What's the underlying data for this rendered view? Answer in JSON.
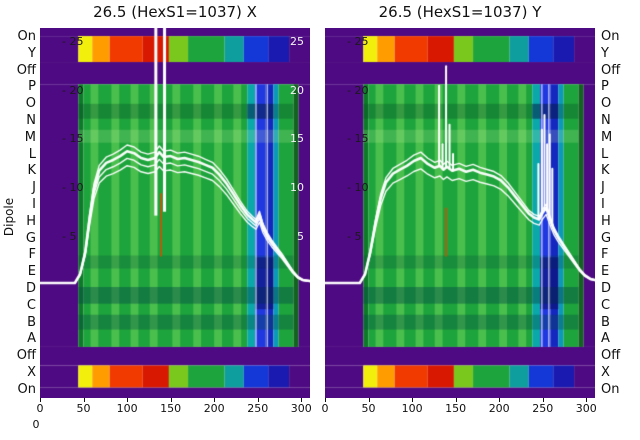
{
  "side_labels": {
    "dipole": "Dipole",
    "rows": [
      "On",
      "Y",
      "Off",
      "P",
      "O",
      "N",
      "M",
      "L",
      "K",
      "J",
      "I",
      "H",
      "G",
      "F",
      "E",
      "D",
      "C",
      "B",
      "A",
      "Off",
      "X",
      "On"
    ]
  },
  "chart_data": {
    "type": "heatmap",
    "x_range": [
      0,
      310
    ],
    "x_ticks": [
      0,
      50,
      100,
      150,
      200,
      250,
      300
    ],
    "y_ticks": [
      25,
      20,
      15,
      10,
      5
    ],
    "origin_extra_label": "0",
    "value_axis": {
      "zero_frac": 0.697,
      "unit_frac": 0.02638
    },
    "colors": {
      "purple": "#4e0a82",
      "green": "#1ea43c",
      "trace": "#ffffff",
      "red_line": "#e04a00",
      "tick_text": "#1a1a1a",
      "white_tick": "#f5f5f5"
    },
    "heat": {
      "rows": [
        {
          "y0": 0.0,
          "y1": 0.022,
          "fill": "purple"
        },
        {
          "y0": 0.022,
          "y1": 0.092,
          "fill": "rainbow"
        },
        {
          "y0": 0.092,
          "y1": 0.152,
          "fill": "purple"
        },
        {
          "y0": 0.152,
          "y1": 0.862,
          "fill": "main"
        },
        {
          "y0": 0.862,
          "y1": 0.912,
          "fill": "purple"
        },
        {
          "y0": 0.912,
          "y1": 0.972,
          "fill": "rainbow"
        },
        {
          "y0": 0.972,
          "y1": 1.0,
          "fill": "purple"
        }
      ],
      "rainbow": [
        {
          "x0": 0,
          "x1": 44,
          "c": "#4e0a82"
        },
        {
          "x0": 44,
          "x1": 60,
          "c": "#f2ef0c"
        },
        {
          "x0": 60,
          "x1": 80,
          "c": "#ff9d00"
        },
        {
          "x0": 80,
          "x1": 118,
          "c": "#f03a00"
        },
        {
          "x0": 118,
          "x1": 148,
          "c": "#d81800"
        },
        {
          "x0": 148,
          "x1": 170,
          "c": "#7ac81e"
        },
        {
          "x0": 170,
          "x1": 212,
          "c": "#1ea43c"
        },
        {
          "x0": 212,
          "x1": 234,
          "c": "#0f9e9e"
        },
        {
          "x0": 234,
          "x1": 262,
          "c": "#1438d8"
        },
        {
          "x0": 262,
          "x1": 286,
          "c": "#1a1ab0"
        },
        {
          "x0": 286,
          "x1": 310,
          "c": "#4e0a82"
        }
      ],
      "main": [
        {
          "x0": 0,
          "x1": 44,
          "c": "#4e0a82"
        },
        {
          "x0": 44,
          "x1": 50,
          "c": "#0c7a28"
        },
        {
          "x0": 50,
          "x1": 238,
          "c": "#1ea43c"
        },
        {
          "x0": 238,
          "x1": 247,
          "c": "#0aa8a8"
        },
        {
          "x0": 247,
          "x1": 259,
          "c": "#2038e0"
        },
        {
          "x0": 259,
          "x1": 268,
          "c": "#1428c0"
        },
        {
          "x0": 268,
          "x1": 274,
          "c": "#0a9ab8"
        },
        {
          "x0": 274,
          "x1": 291,
          "c": "#1ea43c"
        },
        {
          "x0": 291,
          "x1": 297,
          "c": "#11631f"
        },
        {
          "x0": 297,
          "x1": 310,
          "c": "#4e0a82"
        }
      ],
      "hband_x": [
        44,
        291
      ],
      "light_columns": [
        58,
        82,
        104,
        126,
        152,
        176,
        200,
        222
      ],
      "light_column_width": 9,
      "light_column_color": "rgba(180,255,120,0.30)",
      "hbands": [
        {
          "y0": 0.205,
          "y1": 0.245,
          "c": "rgba(8,70,40,0.30)"
        },
        {
          "y0": 0.275,
          "y1": 0.31,
          "c": "rgba(220,255,180,0.18)"
        },
        {
          "y0": 0.615,
          "y1": 0.65,
          "c": "rgba(8,70,60,0.25)"
        },
        {
          "y0": 0.7,
          "y1": 0.745,
          "c": "rgba(6,75,70,0.45)"
        },
        {
          "y0": 0.775,
          "y1": 0.815,
          "c": "rgba(6,75,70,0.35)"
        }
      ],
      "blue_patches": [
        {
          "x0": 247,
          "x1": 268,
          "y0": 0.62,
          "y1": 0.76,
          "c": "rgba(6,10,90,0.50)"
        },
        {
          "x0": 238,
          "x1": 268,
          "y0": 0.205,
          "y1": 0.245,
          "c": "rgba(6,10,90,0.35)"
        }
      ]
    },
    "panels": [
      {
        "title": "26.5 (HexS1=1037) X",
        "yticks_right": [
          25,
          20,
          15,
          10,
          5
        ],
        "full_spikes": [
          {
            "x": 133,
            "y0_frac": 0.0,
            "v_end": 7.2,
            "w": 3
          },
          {
            "x": 143,
            "y0_frac": 0.0,
            "v_end": 7.6,
            "w": 3
          }
        ],
        "thin_vlines": [
          248,
          261
        ],
        "red_line": {
          "x": 139,
          "v0": 3.0,
          "v1": 9.5
        },
        "trace": [
          [
            0,
            0.3
          ],
          [
            40,
            0.3
          ],
          [
            46,
            1.2
          ],
          [
            52,
            3.5
          ],
          [
            57,
            7
          ],
          [
            62,
            10
          ],
          [
            68,
            11.8
          ],
          [
            76,
            12.6
          ],
          [
            84,
            12.9
          ],
          [
            92,
            13.3
          ],
          [
            100,
            13.8
          ],
          [
            108,
            13.6
          ],
          [
            116,
            13.1
          ],
          [
            124,
            12.9
          ],
          [
            132,
            13.1
          ],
          [
            137,
            13.7
          ],
          [
            142,
            13.2
          ],
          [
            150,
            13.3
          ],
          [
            158,
            13.0
          ],
          [
            166,
            13.1
          ],
          [
            174,
            12.9
          ],
          [
            182,
            12.7
          ],
          [
            190,
            12.4
          ],
          [
            198,
            12.1
          ],
          [
            206,
            11.4
          ],
          [
            214,
            10.5
          ],
          [
            222,
            9.4
          ],
          [
            230,
            8.3
          ],
          [
            238,
            7.3
          ],
          [
            244,
            6.8
          ],
          [
            248,
            6.5
          ],
          [
            252,
            7.3
          ],
          [
            256,
            6.1
          ],
          [
            261,
            5.2
          ],
          [
            266,
            4.5
          ],
          [
            272,
            3.8
          ],
          [
            278,
            3.1
          ],
          [
            284,
            2.3
          ],
          [
            290,
            1.5
          ],
          [
            296,
            0.9
          ],
          [
            302,
            0.6
          ],
          [
            310,
            0.5
          ]
        ],
        "trace_offsets": [
          0,
          -0.7,
          0.6,
          -1.4
        ],
        "spikes": []
      },
      {
        "title": "26.5 (HexS1=1037) Y",
        "yticks_right": [],
        "full_spikes": [],
        "thin_vlines": [
          249,
          257
        ],
        "red_line": {
          "x": 139,
          "v0": 3.0,
          "v1": 8.0
        },
        "trace": [
          [
            0,
            0.3
          ],
          [
            40,
            0.3
          ],
          [
            46,
            1.2
          ],
          [
            52,
            3.5
          ],
          [
            58,
            6.5
          ],
          [
            64,
            9
          ],
          [
            70,
            10.6
          ],
          [
            78,
            11.5
          ],
          [
            86,
            11.9
          ],
          [
            94,
            12.3
          ],
          [
            102,
            12.8
          ],
          [
            110,
            13.1
          ],
          [
            118,
            12.5
          ],
          [
            126,
            12.1
          ],
          [
            132,
            12.3
          ],
          [
            136,
            11.9
          ],
          [
            140,
            12.2
          ],
          [
            146,
            11.8
          ],
          [
            154,
            12.0
          ],
          [
            162,
            11.7
          ],
          [
            170,
            11.9
          ],
          [
            178,
            11.6
          ],
          [
            186,
            11.4
          ],
          [
            194,
            11.2
          ],
          [
            202,
            10.8
          ],
          [
            210,
            10.1
          ],
          [
            218,
            9.2
          ],
          [
            226,
            8.3
          ],
          [
            234,
            7.4
          ],
          [
            240,
            7.0
          ],
          [
            246,
            6.8
          ],
          [
            250,
            7.5
          ],
          [
            254,
            8.0
          ],
          [
            258,
            6.9
          ],
          [
            263,
            5.7
          ],
          [
            268,
            4.9
          ],
          [
            274,
            4.1
          ],
          [
            280,
            3.3
          ],
          [
            286,
            2.5
          ],
          [
            292,
            1.7
          ],
          [
            298,
            1.1
          ],
          [
            305,
            0.7
          ],
          [
            310,
            0.6
          ]
        ],
        "trace_offsets": [
          0,
          -1.1,
          0.6
        ],
        "spikes": [
          [
            131,
            20.5
          ],
          [
            135,
            14.5
          ],
          [
            139,
            22.5
          ],
          [
            143,
            16.5
          ],
          [
            147,
            13.5
          ],
          [
            245,
            12.5
          ],
          [
            249,
            16
          ],
          [
            252,
            17.5
          ],
          [
            255,
            14.5
          ],
          [
            258,
            15.5
          ],
          [
            261,
            12
          ]
        ]
      }
    ]
  }
}
